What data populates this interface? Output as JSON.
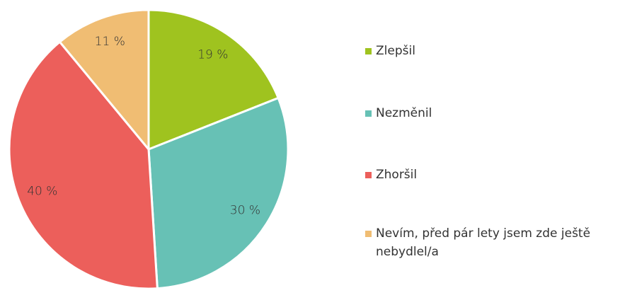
{
  "chart_data": {
    "type": "pie",
    "categories": [
      "Zlepšil",
      "Nezměnil",
      "Zhoršil",
      "Nevím, před pár lety jsem zde ještě nebydlel/a"
    ],
    "values": [
      19,
      30,
      40,
      11
    ],
    "value_labels": [
      "19 %",
      "30 %",
      "40 %",
      "11 %"
    ],
    "colors": [
      "#9fc31f",
      "#67c1b5",
      "#ec5f5b",
      "#f0bd73"
    ],
    "legend": "right"
  }
}
